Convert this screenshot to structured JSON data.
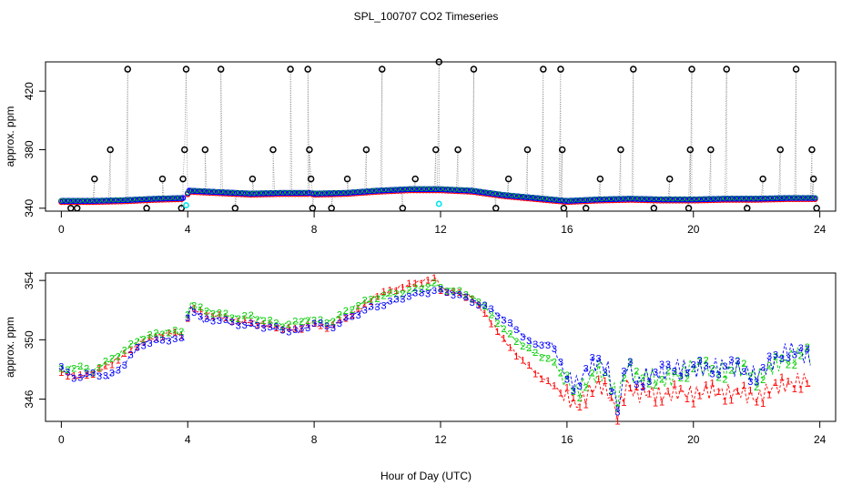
{
  "title": "SPL_100707  CO2 Timeseries",
  "xlabel": "Hour of Day (UTC)",
  "colors": {
    "black": "#000000",
    "red": "#ff0000",
    "green": "#00cc00",
    "blue": "#0000ff",
    "cyan": "#00e5ee",
    "drop": "#888888"
  },
  "chart_data": [
    {
      "type": "scatter",
      "ylabel": "approx. ppm",
      "xlim": [
        -0.5,
        24.5
      ],
      "ylim": [
        338,
        440
      ],
      "xticks": [
        0,
        4,
        8,
        12,
        16,
        20,
        24
      ],
      "yticks": [
        340,
        380,
        420
      ],
      "drop_lines": true,
      "series_color": "black",
      "gap_x": [
        3.85,
        7.9
      ],
      "baseline": [
        [
          0,
          345
        ],
        [
          1,
          345
        ],
        [
          2,
          345.5
        ],
        [
          3,
          346.5
        ],
        [
          3.9,
          347
        ],
        [
          4.05,
          352
        ],
        [
          5,
          351
        ],
        [
          6,
          350
        ],
        [
          7,
          350.5
        ],
        [
          7.9,
          350.5
        ],
        [
          8,
          350
        ],
        [
          9,
          350.5
        ],
        [
          10,
          352
        ],
        [
          11,
          353
        ],
        [
          11.9,
          353
        ],
        [
          12,
          353
        ],
        [
          13,
          352
        ],
        [
          14,
          349
        ],
        [
          15,
          347
        ],
        [
          16,
          345
        ],
        [
          17,
          346
        ],
        [
          18,
          346.5
        ],
        [
          19,
          346
        ],
        [
          20,
          346
        ],
        [
          21,
          346.5
        ],
        [
          22,
          346.5
        ],
        [
          23,
          347
        ],
        [
          23.9,
          347
        ]
      ],
      "spikes": [
        [
          0.3,
          340
        ],
        [
          0.5,
          340
        ],
        [
          1.05,
          360
        ],
        [
          1.55,
          380
        ],
        [
          2.1,
          435
        ],
        [
          2.7,
          340
        ],
        [
          3.2,
          360
        ],
        [
          3.8,
          340
        ],
        [
          3.85,
          360
        ],
        [
          3.9,
          380
        ],
        [
          3.95,
          435
        ],
        [
          4.55,
          380
        ],
        [
          5.05,
          435
        ],
        [
          5.5,
          340
        ],
        [
          6.05,
          360
        ],
        [
          6.7,
          380
        ],
        [
          7.25,
          435
        ],
        [
          7.8,
          435
        ],
        [
          7.85,
          380
        ],
        [
          7.9,
          360
        ],
        [
          7.95,
          340
        ],
        [
          8.55,
          340
        ],
        [
          9.05,
          360
        ],
        [
          9.65,
          380
        ],
        [
          10.15,
          435
        ],
        [
          10.8,
          340
        ],
        [
          11.2,
          360
        ],
        [
          11.85,
          380
        ],
        [
          11.95,
          440
        ],
        [
          12.55,
          380
        ],
        [
          13.05,
          435
        ],
        [
          13.75,
          340
        ],
        [
          14.15,
          360
        ],
        [
          14.75,
          380
        ],
        [
          15.25,
          435
        ],
        [
          15.8,
          435
        ],
        [
          15.85,
          380
        ],
        [
          15.9,
          340
        ],
        [
          16.6,
          340
        ],
        [
          17.05,
          360
        ],
        [
          17.7,
          380
        ],
        [
          18.1,
          435
        ],
        [
          18.75,
          340
        ],
        [
          19.25,
          360
        ],
        [
          19.85,
          340
        ],
        [
          19.9,
          380
        ],
        [
          19.95,
          435
        ],
        [
          20.55,
          380
        ],
        [
          21.05,
          435
        ],
        [
          21.7,
          340
        ],
        [
          22.2,
          360
        ],
        [
          22.75,
          380
        ],
        [
          23.25,
          435
        ],
        [
          23.75,
          380
        ],
        [
          23.8,
          360
        ],
        [
          23.9,
          340
        ]
      ],
      "overlay": [
        {
          "color": "red",
          "pattern": "flat"
        },
        {
          "color": "cyan",
          "points": [
            [
              3.95,
              342
            ],
            [
              11.95,
              343
            ]
          ]
        }
      ]
    },
    {
      "type": "line",
      "ylabel": "approx. ppm",
      "xlim": [
        -0.5,
        24.5
      ],
      "ylim": [
        344.5,
        354.5
      ],
      "xticks": [
        0,
        4,
        8,
        12,
        16,
        20,
        24
      ],
      "yticks": [
        346,
        350,
        354
      ],
      "gap_x": [
        3.95,
        7.9
      ],
      "series": [
        {
          "name": "1",
          "color": "red",
          "glyph": "1",
          "points": [
            [
              0,
              347.8
            ],
            [
              0.5,
              347.5
            ],
            [
              1,
              347.8
            ],
            [
              1.5,
              348.3
            ],
            [
              2,
              349.0
            ],
            [
              2.5,
              349.8
            ],
            [
              3,
              350.2
            ],
            [
              3.5,
              350.5
            ],
            [
              3.9,
              350.3
            ],
            [
              4.05,
              352.2
            ],
            [
              4.5,
              351.8
            ],
            [
              5,
              351.6
            ],
            [
              5.5,
              351.3
            ],
            [
              6,
              351.2
            ],
            [
              6.5,
              351.0
            ],
            [
              7,
              350.8
            ],
            [
              7.5,
              350.7
            ],
            [
              7.9,
              351.2
            ],
            [
              8,
              351.0
            ],
            [
              8.5,
              350.9
            ],
            [
              9,
              351.5
            ],
            [
              9.5,
              352.2
            ],
            [
              10,
              353.0
            ],
            [
              10.5,
              353.4
            ],
            [
              11,
              353.7
            ],
            [
              11.5,
              354.0
            ],
            [
              11.9,
              354.1
            ],
            [
              12,
              353.4
            ],
            [
              12.5,
              353.2
            ],
            [
              13,
              352.8
            ],
            [
              13.5,
              351.5
            ],
            [
              14,
              350.0
            ],
            [
              14.5,
              348.8
            ],
            [
              15,
              347.8
            ],
            [
              15.5,
              347.0
            ],
            [
              16,
              346.2
            ],
            [
              16.3,
              345.5
            ],
            [
              16.7,
              346.5
            ],
            [
              17,
              347.0
            ],
            [
              17.3,
              346.5
            ],
            [
              17.6,
              345.0
            ],
            [
              17.9,
              347.0
            ],
            [
              18.2,
              346.3
            ],
            [
              18.6,
              346.5
            ],
            [
              19,
              346.2
            ],
            [
              19.5,
              346.5
            ],
            [
              20,
              346.3
            ],
            [
              20.5,
              346.6
            ],
            [
              21,
              346.4
            ],
            [
              21.5,
              346.5
            ],
            [
              22,
              346.0
            ],
            [
              22.5,
              346.8
            ],
            [
              23,
              347.0
            ],
            [
              23.5,
              347.3
            ],
            [
              23.75,
              347.0
            ]
          ]
        },
        {
          "name": "2",
          "color": "green",
          "glyph": "2",
          "points": [
            [
              0,
              348.0
            ],
            [
              0.5,
              348.2
            ],
            [
              1,
              347.9
            ],
            [
              1.5,
              348.6
            ],
            [
              2,
              349.3
            ],
            [
              2.5,
              350.1
            ],
            [
              3,
              350.4
            ],
            [
              3.5,
              350.6
            ],
            [
              3.9,
              350.5
            ],
            [
              4.05,
              352.5
            ],
            [
              4.5,
              352.0
            ],
            [
              5,
              351.8
            ],
            [
              5.5,
              351.5
            ],
            [
              6,
              351.6
            ],
            [
              6.5,
              351.3
            ],
            [
              7,
              351.0
            ],
            [
              7.5,
              351.2
            ],
            [
              7.9,
              351.5
            ],
            [
              8,
              351.3
            ],
            [
              8.5,
              351.2
            ],
            [
              9,
              351.9
            ],
            [
              9.5,
              352.5
            ],
            [
              10,
              352.9
            ],
            [
              10.5,
              353.1
            ],
            [
              11,
              353.3
            ],
            [
              11.5,
              353.6
            ],
            [
              11.9,
              353.8
            ],
            [
              12,
              353.5
            ],
            [
              12.5,
              353.3
            ],
            [
              13,
              352.9
            ],
            [
              13.5,
              352.0
            ],
            [
              14,
              350.7
            ],
            [
              14.5,
              349.8
            ],
            [
              15,
              349.1
            ],
            [
              15.5,
              348.7
            ],
            [
              16,
              347.2
            ],
            [
              16.3,
              346.5
            ],
            [
              16.7,
              347.3
            ],
            [
              17,
              347.8
            ],
            [
              17.3,
              347.5
            ],
            [
              17.6,
              346.0
            ],
            [
              17.9,
              348.3
            ],
            [
              18.2,
              347.4
            ],
            [
              18.6,
              347.6
            ],
            [
              19,
              347.2
            ],
            [
              19.5,
              347.6
            ],
            [
              20,
              348.3
            ],
            [
              20.5,
              348.0
            ],
            [
              21,
              347.9
            ],
            [
              21.5,
              348.1
            ],
            [
              22,
              347.4
            ],
            [
              22.5,
              348.2
            ],
            [
              23,
              348.7
            ],
            [
              23.5,
              349.2
            ],
            [
              23.75,
              348.9
            ]
          ]
        },
        {
          "name": "3",
          "color": "blue",
          "glyph": "3",
          "points": [
            [
              0,
              348.1
            ],
            [
              0.5,
              347.4
            ],
            [
              1,
              347.8
            ],
            [
              1.5,
              347.5
            ],
            [
              2,
              348.4
            ],
            [
              2.5,
              349.7
            ],
            [
              3,
              349.9
            ],
            [
              3.5,
              350.1
            ],
            [
              3.9,
              350.0
            ],
            [
              4.05,
              352.3
            ],
            [
              4.5,
              351.3
            ],
            [
              5,
              351.4
            ],
            [
              5.5,
              351.1
            ],
            [
              6,
              351.0
            ],
            [
              6.5,
              350.9
            ],
            [
              7,
              350.7
            ],
            [
              7.5,
              350.6
            ],
            [
              7.9,
              351.0
            ],
            [
              8,
              351.2
            ],
            [
              8.5,
              350.8
            ],
            [
              9,
              351.4
            ],
            [
              9.5,
              351.9
            ],
            [
              10,
              352.3
            ],
            [
              10.5,
              352.6
            ],
            [
              11,
              353.0
            ],
            [
              11.5,
              353.2
            ],
            [
              11.9,
              353.4
            ],
            [
              12,
              353.3
            ],
            [
              12.5,
              353.1
            ],
            [
              13,
              352.6
            ],
            [
              13.5,
              352.2
            ],
            [
              14,
              351.4
            ],
            [
              14.5,
              350.5
            ],
            [
              15,
              349.6
            ],
            [
              15.5,
              349.8
            ],
            [
              16,
              347.5
            ],
            [
              16.3,
              347.0
            ],
            [
              16.7,
              348.1
            ],
            [
              17,
              348.5
            ],
            [
              17.3,
              348.0
            ],
            [
              17.6,
              345.3
            ],
            [
              17.9,
              348.5
            ],
            [
              18.2,
              347.0
            ],
            [
              18.6,
              347.7
            ],
            [
              19,
              347.8
            ],
            [
              19.5,
              348.2
            ],
            [
              20,
              348.0
            ],
            [
              20.5,
              348.1
            ],
            [
              21,
              348.3
            ],
            [
              21.5,
              348.0
            ],
            [
              22,
              347.6
            ],
            [
              22.5,
              348.5
            ],
            [
              23,
              349.4
            ],
            [
              23.5,
              349.0
            ],
            [
              23.75,
              348.6
            ]
          ]
        }
      ]
    }
  ]
}
